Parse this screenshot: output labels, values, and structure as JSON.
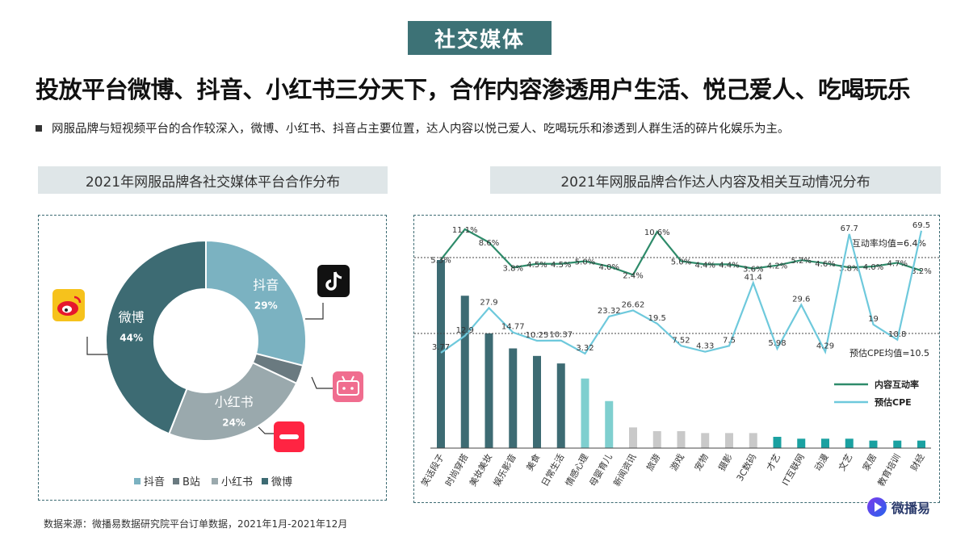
{
  "header": {
    "badge": "社交媒体",
    "headline": "投放平台微博、抖音、小红书三分天下，合作内容渗透用户生活、悦己爱人、吃喝玩乐",
    "description": "网服品牌与短视频平台的合作较深入，微博、小红书、抖音占主要位置，达人内容以悦己爱人、吃喝玩乐和渗透到人群生活的碎片化娱乐为主。"
  },
  "colors": {
    "teal_dark": "#3d6b73",
    "teal_mid": "#5f8c94",
    "blue_light": "#7bb2c1",
    "grey": "#9aa9ad",
    "aqua": "#7fcfcf",
    "grey_bar": "#c9c9c9",
    "cyan": "#1aa1a1",
    "line_green": "#2e8b6a",
    "line_cyan": "#6ec9dc"
  },
  "footer": {
    "source": "数据来源：微播易数据研究院平台订单数据，2021年1月-2021年12月",
    "logo_text": "微播易"
  },
  "chart_data": [
    {
      "type": "pie",
      "title": "2021年网服品牌各社交媒体平台合作分布",
      "donut": true,
      "slices": [
        {
          "name": "抖音",
          "value": 29,
          "label": "29%",
          "color": "#7bb2c1"
        },
        {
          "name": "B站",
          "value": 3,
          "label": "",
          "color": "#6a7a80"
        },
        {
          "name": "小红书",
          "value": 24,
          "label": "24%",
          "color": "#9aa9ad"
        },
        {
          "name": "微博",
          "value": 44,
          "label": "44%",
          "color": "#3d6b73"
        }
      ],
      "legend": [
        "抖音",
        "B站",
        "小红书",
        "微博"
      ],
      "legend_position": "bottom",
      "platform_icons": [
        "weibo-icon",
        "tiktok-icon",
        "bilibili-icon",
        "xiaohongshu-icon"
      ]
    },
    {
      "type": "bar",
      "title": "2021年网服品牌合作达人内容及相关互动情况分布",
      "categories": [
        "笑话段子",
        "时尚穿搭",
        "美妆美妆",
        "娱乐影音",
        "美食",
        "日常生活",
        "情感心理",
        "母婴育儿",
        "新闻资讯",
        "旅游",
        "游戏",
        "宠物",
        "摄影",
        "3C数码",
        "才艺",
        "IT互联网",
        "动漫",
        "文艺",
        "家居",
        "教育培训",
        "财经"
      ],
      "bar_heights": [
        100,
        81,
        61,
        53,
        49,
        45,
        37,
        25,
        11,
        9,
        9,
        8,
        8,
        8,
        6,
        5,
        5,
        5,
        4,
        4,
        4
      ],
      "bar_colors": [
        "#3d6b73",
        "#3d6b73",
        "#3d6b73",
        "#3d6b73",
        "#3d6b73",
        "#3d6b73",
        "#7fcfcf",
        "#7fcfcf",
        "#c9c9c9",
        "#c9c9c9",
        "#c9c9c9",
        "#c9c9c9",
        "#c9c9c9",
        "#c9c9c9",
        "#1aa1a1",
        "#1aa1a1",
        "#1aa1a1",
        "#1aa1a1",
        "#1aa1a1",
        "#1aa1a1",
        "#1aa1a1"
      ],
      "series": [
        {
          "name": "内容互动率",
          "kind": "line",
          "values": [
            5.3,
            11.1,
            8.6,
            3.8,
            4.5,
            4.5,
            5.0,
            4.0,
            2.4,
            10.6,
            5.0,
            4.4,
            4.4,
            3.6,
            4.2,
            5.2,
            4.6,
            3.8,
            4.0,
            4.7,
            3.2
          ],
          "labels": [
            "5.3%",
            "11.1%",
            "8.6%",
            "3.8%",
            "4.5%",
            "4.5%",
            "5.0%",
            "4.0%",
            "2.4%",
            "10.6%",
            "5.0%",
            "4.4%",
            "4.4%",
            "3.6%",
            "4.2%",
            "5.2%",
            "4.6%",
            "3.8%",
            "4.0%",
            "4.7%",
            "3.2%"
          ]
        },
        {
          "name": "预估CPE",
          "kind": "line",
          "values": [
            3.77,
            12.9,
            27.9,
            14.77,
            10.25,
            10.37,
            3.32,
            23.32,
            26.62,
            19.5,
            7.52,
            4.33,
            7.5,
            41.4,
            5.98,
            29.6,
            4.29,
            67.7,
            19,
            10.8,
            69.5
          ],
          "labels": [
            "3.77",
            "12.9",
            "27.9",
            "14.77",
            "10.25",
            "10.37",
            "3.32",
            "23.32",
            "26.62",
            "19.5",
            "7.52",
            "4.33",
            "7.5",
            "41.4",
            "5.98",
            "29.6",
            "4.29",
            "67.7",
            "19",
            "10.8",
            "69.5"
          ]
        }
      ],
      "reference_lines": [
        {
          "label": "互动率均值=6.4%",
          "series": "内容互动率",
          "value": 6.4
        },
        {
          "label": "预估CPE均值=10.5",
          "series": "预估CPE",
          "value": 10.5
        }
      ],
      "legend": [
        "内容互动率",
        "预估CPE"
      ],
      "legend_position": "right"
    }
  ]
}
